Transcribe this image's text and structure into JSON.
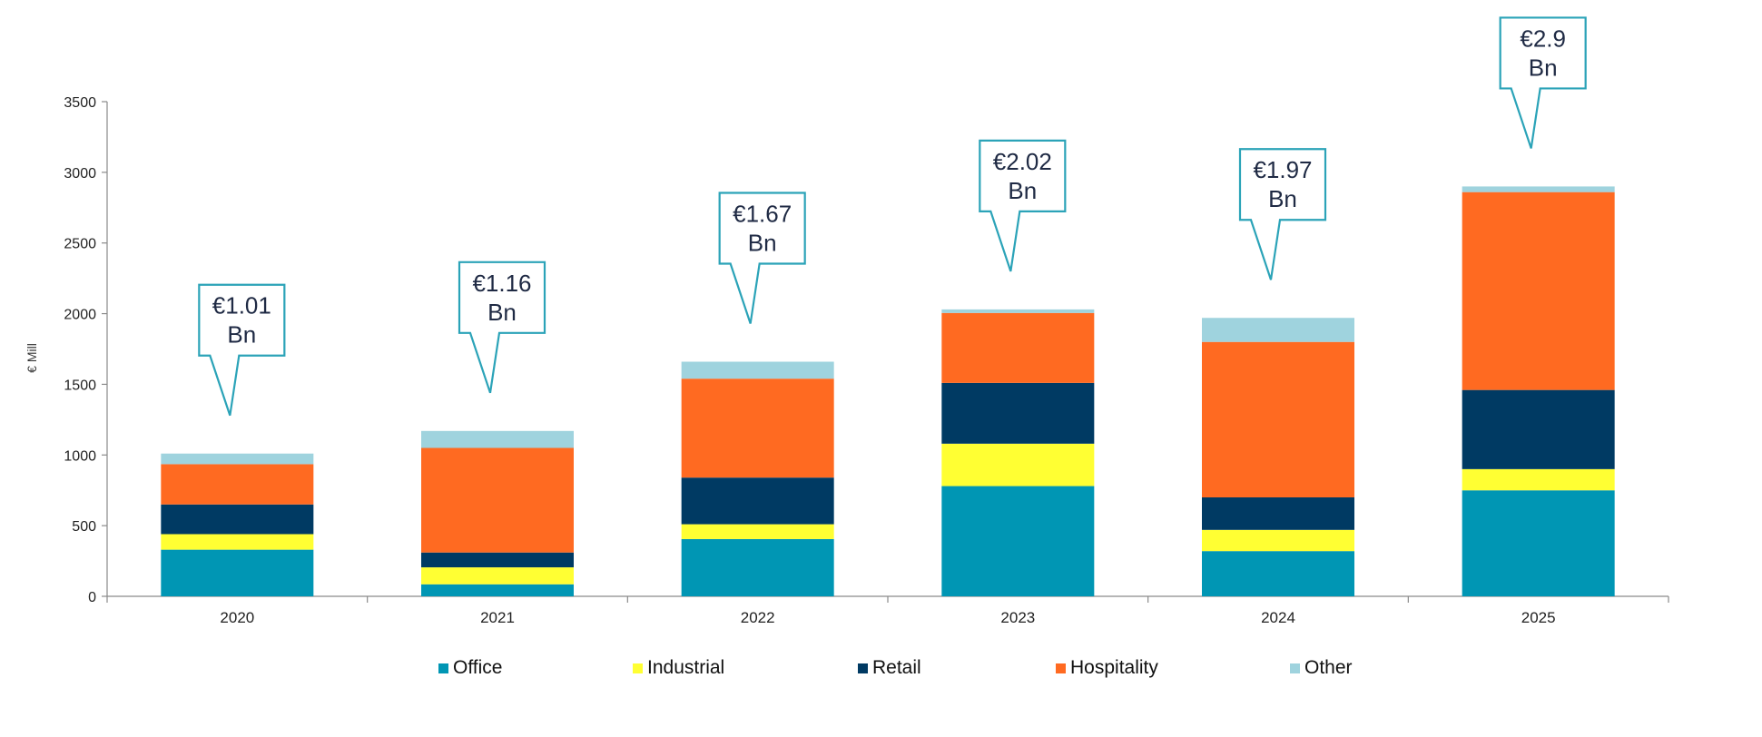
{
  "chart_data": {
    "type": "bar",
    "stacked": true,
    "title": "",
    "xlabel": "",
    "ylabel": "€ Mill",
    "ylim": [
      0,
      3500
    ],
    "yticks": [
      0,
      500,
      1000,
      1500,
      2000,
      2500,
      3000,
      3500
    ],
    "grid": false,
    "legend_position": "bottom",
    "categories": [
      "2020",
      "2021",
      "2022",
      "2023",
      "2024",
      "2025"
    ],
    "series": [
      {
        "name": "Office",
        "color": "#0096B4",
        "values": [
          330,
          85,
          405,
          780,
          320,
          750
        ]
      },
      {
        "name": "Industrial",
        "color": "#FFFF33",
        "values": [
          110,
          120,
          105,
          300,
          150,
          150
        ]
      },
      {
        "name": "Retail",
        "color": "#003A63",
        "values": [
          210,
          105,
          330,
          430,
          230,
          560
        ]
      },
      {
        "name": "Hospitality",
        "color": "#FF6A21",
        "values": [
          285,
          740,
          700,
          495,
          1100,
          1400
        ]
      },
      {
        "name": "Other",
        "color": "#9FD3DE",
        "values": [
          75,
          120,
          120,
          25,
          170,
          40
        ]
      }
    ],
    "annotations": [
      {
        "category": "2020",
        "line1": "€1.01",
        "line2": "Bn"
      },
      {
        "category": "2021",
        "line1": "€1.16",
        "line2": "Bn"
      },
      {
        "category": "2022",
        "line1": "€1.67",
        "line2": "Bn"
      },
      {
        "category": "2023",
        "line1": "€2.02",
        "line2": "Bn"
      },
      {
        "category": "2024",
        "line1": "€1.97",
        "line2": "Bn"
      },
      {
        "category": "2025",
        "line1": "€2.9",
        "line2": "Bn"
      }
    ]
  }
}
